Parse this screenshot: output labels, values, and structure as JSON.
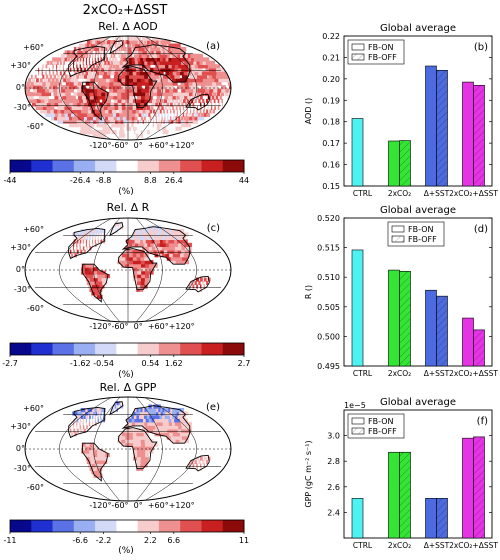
{
  "figure_title": "2xCO₂+ΔSST",
  "maps": [
    {
      "title": "Rel. Δ AOD",
      "panel": "(a)",
      "lat_labels": [
        "+60°",
        "+30°",
        "0°",
        "-30°",
        "-60°"
      ],
      "lon_labels": "-120°-60°  0°  +60°+120°",
      "cb_ticks": [
        "-44",
        "-26.4",
        "-8.8",
        "8.8",
        "26.4",
        "44"
      ],
      "unit": "(%)",
      "pattern": "aod"
    },
    {
      "title": "Rel. Δ R",
      "panel": "(c)",
      "lat_labels": [
        "+60°",
        "+30°",
        "0°",
        "-30°",
        "-60°"
      ],
      "lon_labels": "-120°-60°  0°  +60°+120°",
      "cb_ticks": [
        "-2.7",
        "-1.62",
        "-0.54",
        "0.54",
        "1.62",
        "2.7"
      ],
      "unit": "(%)",
      "pattern": "r"
    },
    {
      "title": "Rel. Δ GPP",
      "panel": "(e)",
      "lat_labels": [
        "+60°",
        "+30°",
        "0°",
        "-30°",
        "-60°"
      ],
      "lon_labels": "-120°-60°  0°  +60°+120°",
      "cb_ticks": [
        "-11",
        "-6.6",
        "-2.2",
        "2.2",
        "6.6",
        "11"
      ],
      "unit": "(%)",
      "pattern": "gpp"
    }
  ],
  "colorbar_colors": [
    "#08088c",
    "#1f2fd0",
    "#5a72e6",
    "#9aaff2",
    "#d2daf8",
    "#ffffff",
    "#f6cccc",
    "#ee9090",
    "#e05050",
    "#c82020",
    "#8c0a0a"
  ],
  "chart_data": [
    {
      "type": "bar",
      "title": "Global average",
      "panel": "(b)",
      "ylabel": "AOD ()",
      "ylim": [
        0.15,
        0.22
      ],
      "yticks": [
        "0.15",
        "0.16",
        "0.17",
        "0.18",
        "0.19",
        "0.20",
        "0.21",
        "0.22"
      ],
      "categories": [
        "CTRL",
        "2xCO₂",
        "Δ+SST",
        "2xCO₂+ΔSST"
      ],
      "legend": [
        "FB-ON",
        "FB-OFF"
      ],
      "legend_position": "top-left",
      "bars": [
        {
          "category": "CTRL",
          "series": "FB-ON",
          "value": 0.1815
        },
        {
          "category": "2xCO₂",
          "series": "FB-ON",
          "value": 0.171
        },
        {
          "category": "2xCO₂",
          "series": "FB-OFF",
          "value": 0.1712
        },
        {
          "category": "Δ+SST",
          "series": "FB-ON",
          "value": 0.206
        },
        {
          "category": "Δ+SST",
          "series": "FB-OFF",
          "value": 0.204
        },
        {
          "category": "2xCO₂+ΔSST",
          "series": "FB-ON",
          "value": 0.1985
        },
        {
          "category": "2xCO₂+ΔSST",
          "series": "FB-OFF",
          "value": 0.197
        }
      ],
      "colors": [
        "#4ef2f2",
        "#33e633",
        "#4d6be0",
        "#e633e6"
      ]
    },
    {
      "type": "bar",
      "title": "Global average",
      "panel": "(d)",
      "ylabel": "R ()",
      "ylim": [
        0.495,
        0.52
      ],
      "yticks": [
        "0.495",
        "0.500",
        "0.505",
        "0.510",
        "0.515",
        "0.520"
      ],
      "categories": [
        "CTRL",
        "2xCO₂",
        "Δ+SST",
        "2xCO₂+ΔSST"
      ],
      "legend": [
        "FB-ON",
        "FB-OFF"
      ],
      "legend_position": "top-right",
      "bars": [
        {
          "category": "CTRL",
          "series": "FB-ON",
          "value": 0.5146
        },
        {
          "category": "2xCO₂",
          "series": "FB-ON",
          "value": 0.5112
        },
        {
          "category": "2xCO₂",
          "series": "FB-OFF",
          "value": 0.511
        },
        {
          "category": "Δ+SST",
          "series": "FB-ON",
          "value": 0.5078
        },
        {
          "category": "Δ+SST",
          "series": "FB-OFF",
          "value": 0.5068
        },
        {
          "category": "2xCO₂+ΔSST",
          "series": "FB-ON",
          "value": 0.5031
        },
        {
          "category": "2xCO₂+ΔSST",
          "series": "FB-OFF",
          "value": 0.5011
        }
      ],
      "colors": [
        "#4ef2f2",
        "#33e633",
        "#4d6be0",
        "#e633e6"
      ]
    },
    {
      "type": "bar",
      "title": "Global average",
      "panel": "(f)",
      "ylabel": "GPP (gC m⁻² s⁻¹)",
      "scale_label": "1e−5",
      "ylim": [
        2.2,
        3.2
      ],
      "yticks": [
        "2.4",
        "2.6",
        "2.8",
        "3.0"
      ],
      "ytick_values": [
        2.4,
        2.6,
        2.8,
        3.0
      ],
      "categories": [
        "CTRL",
        "2xCO₂",
        "Δ+SST",
        "2xCO₂+ΔSST"
      ],
      "legend": [
        "FB-ON",
        "FB-OFF"
      ],
      "legend_position": "top-left",
      "bars": [
        {
          "category": "CTRL",
          "series": "FB-ON",
          "value": 2.51
        },
        {
          "category": "2xCO₂",
          "series": "FB-ON",
          "value": 2.87
        },
        {
          "category": "2xCO₂",
          "series": "FB-OFF",
          "value": 2.87
        },
        {
          "category": "Δ+SST",
          "series": "FB-ON",
          "value": 2.51
        },
        {
          "category": "Δ+SST",
          "series": "FB-OFF",
          "value": 2.51
        },
        {
          "category": "2xCO₂+ΔSST",
          "series": "FB-ON",
          "value": 2.98
        },
        {
          "category": "2xCO₂+ΔSST",
          "series": "FB-OFF",
          "value": 2.99
        }
      ],
      "colors": [
        "#4ef2f2",
        "#33e633",
        "#4d6be0",
        "#e633e6"
      ]
    }
  ]
}
